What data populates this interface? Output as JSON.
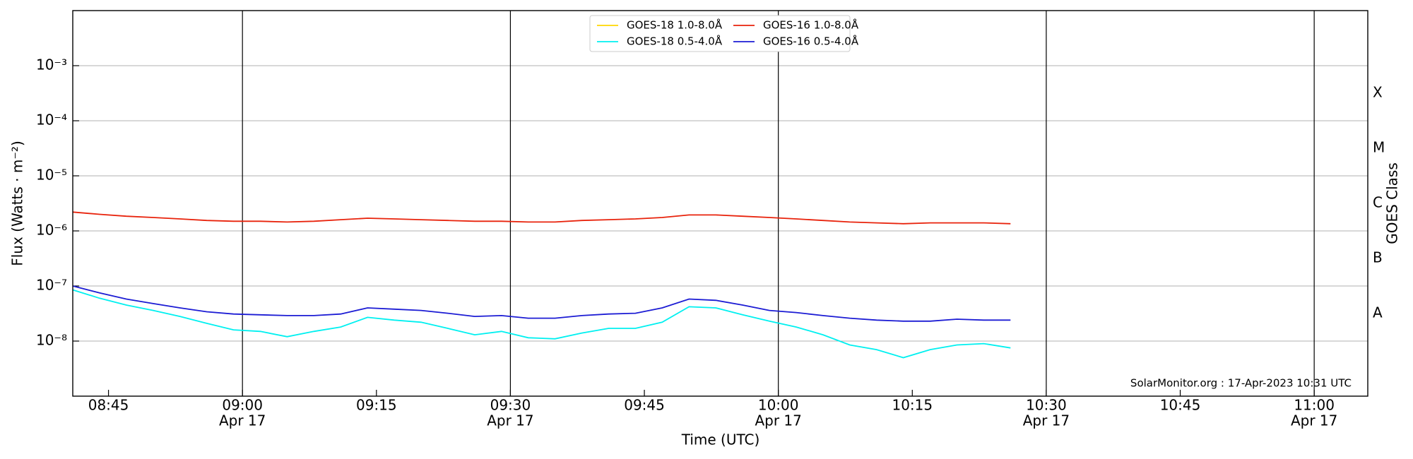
{
  "chart_data": {
    "type": "line",
    "ylabel": "Flux (Watts · m⁻²)",
    "xlabel": "Time (UTC)",
    "y2label": "GOES Class",
    "annotation": "SolarMonitor.org : 17-Apr-2023 10:31 UTC",
    "log_y": true,
    "grid": true,
    "legend": "upper center",
    "xlim": [
      "08:41",
      "11:06"
    ],
    "xticks": [
      "08:45",
      {
        "value": "09:00",
        "label": [
          "09:00",
          "Apr 17"
        ]
      },
      "09:15",
      {
        "value": "09:30",
        "label": [
          "09:30",
          "Apr 17"
        ]
      },
      "09:45",
      {
        "value": "10:00",
        "label": [
          "10:00",
          "Apr 17"
        ]
      },
      "10:15",
      {
        "value": "10:30",
        "label": [
          "10:30",
          "Apr 17"
        ]
      },
      "10:45",
      {
        "value": "11:00",
        "label": [
          "11:00",
          "Apr 17"
        ]
      }
    ],
    "ylim": [
      1e-09,
      0.01
    ],
    "yticks": [
      {
        "value": 1e-08,
        "label": "10⁻⁸"
      },
      {
        "value": 1e-07,
        "label": "10⁻⁷"
      },
      {
        "value": 1e-06,
        "label": "10⁻⁶"
      },
      {
        "value": 1e-05,
        "label": "10⁻⁵"
      },
      {
        "value": 0.0001,
        "label": "10⁻⁴"
      },
      {
        "value": 0.001,
        "label": "10⁻³"
      }
    ],
    "y2lim": [
      1e-09,
      0.01
    ],
    "y2ticks": [
      {
        "value": 3.16e-08,
        "label": "A"
      },
      {
        "value": 3.16e-07,
        "label": "B"
      },
      {
        "value": 3.16e-06,
        "label": "C"
      },
      {
        "value": 3.16e-05,
        "label": "M"
      },
      {
        "value": 0.000316,
        "label": "X"
      }
    ],
    "x": [
      "08:41",
      "08:44",
      "08:47",
      "08:50",
      "08:53",
      "08:56",
      "08:59",
      "09:02",
      "09:05",
      "09:08",
      "09:11",
      "09:14",
      "09:17",
      "09:20",
      "09:23",
      "09:26",
      "09:29",
      "09:32",
      "09:35",
      "09:38",
      "09:41",
      "09:44",
      "09:47",
      "09:50",
      "09:53",
      "09:56",
      "09:59",
      "10:02",
      "10:05",
      "10:08",
      "10:11",
      "10:14",
      "10:17",
      "10:20",
      "10:23",
      "10:26"
    ],
    "series": [
      {
        "name": "GOES-18 1.0-8.0Å",
        "color": "#ffd700",
        "values": [
          null,
          null,
          null,
          null,
          null,
          null,
          null,
          null,
          null,
          null,
          null,
          null,
          null,
          null,
          null,
          null,
          null,
          null,
          null,
          null,
          null,
          null,
          null,
          null,
          null,
          null,
          null,
          null,
          null,
          null,
          null,
          null,
          null,
          null,
          null,
          null
        ]
      },
      {
        "name": "GOES-18 0.5-4.0Å",
        "color": "#00f0f0",
        "values": [
          8.5e-08,
          6e-08,
          4.5e-08,
          3.6e-08,
          2.8e-08,
          2.1e-08,
          1.6e-08,
          1.5e-08,
          1.2e-08,
          1.5e-08,
          1.8e-08,
          2.7e-08,
          2.4e-08,
          2.2e-08,
          1.7e-08,
          1.3e-08,
          1.5e-08,
          1.15e-08,
          1.1e-08,
          1.4e-08,
          1.7e-08,
          1.7e-08,
          2.2e-08,
          4.2e-08,
          4e-08,
          3e-08,
          2.3e-08,
          1.8e-08,
          1.3e-08,
          8.5e-09,
          7e-09,
          5e-09,
          7e-09,
          8.5e-09,
          9e-09,
          7.5e-09
        ]
      },
      {
        "name": "GOES-16 1.0-8.0Å",
        "color": "#e8230c",
        "values": [
          2.2e-06,
          2e-06,
          1.85e-06,
          1.75e-06,
          1.65e-06,
          1.55e-06,
          1.5e-06,
          1.5e-06,
          1.45e-06,
          1.5e-06,
          1.6e-06,
          1.7e-06,
          1.65e-06,
          1.6e-06,
          1.55e-06,
          1.5e-06,
          1.5e-06,
          1.45e-06,
          1.45e-06,
          1.55e-06,
          1.6e-06,
          1.65e-06,
          1.75e-06,
          1.95e-06,
          1.95e-06,
          1.85e-06,
          1.75e-06,
          1.65e-06,
          1.55e-06,
          1.45e-06,
          1.4e-06,
          1.35e-06,
          1.4e-06,
          1.4e-06,
          1.4e-06,
          1.35e-06
        ]
      },
      {
        "name": "GOES-16 0.5-4.0Å",
        "color": "#1c1cd4",
        "values": [
          1e-07,
          7.5e-08,
          5.8e-08,
          4.8e-08,
          4e-08,
          3.4e-08,
          3.1e-08,
          3e-08,
          2.9e-08,
          2.9e-08,
          3.1e-08,
          4e-08,
          3.8e-08,
          3.6e-08,
          3.2e-08,
          2.8e-08,
          2.9e-08,
          2.6e-08,
          2.6e-08,
          2.9e-08,
          3.1e-08,
          3.2e-08,
          4e-08,
          5.8e-08,
          5.5e-08,
          4.5e-08,
          3.6e-08,
          3.3e-08,
          2.9e-08,
          2.6e-08,
          2.4e-08,
          2.3e-08,
          2.3e-08,
          2.5e-08,
          2.4e-08,
          2.4e-08
        ]
      }
    ]
  }
}
